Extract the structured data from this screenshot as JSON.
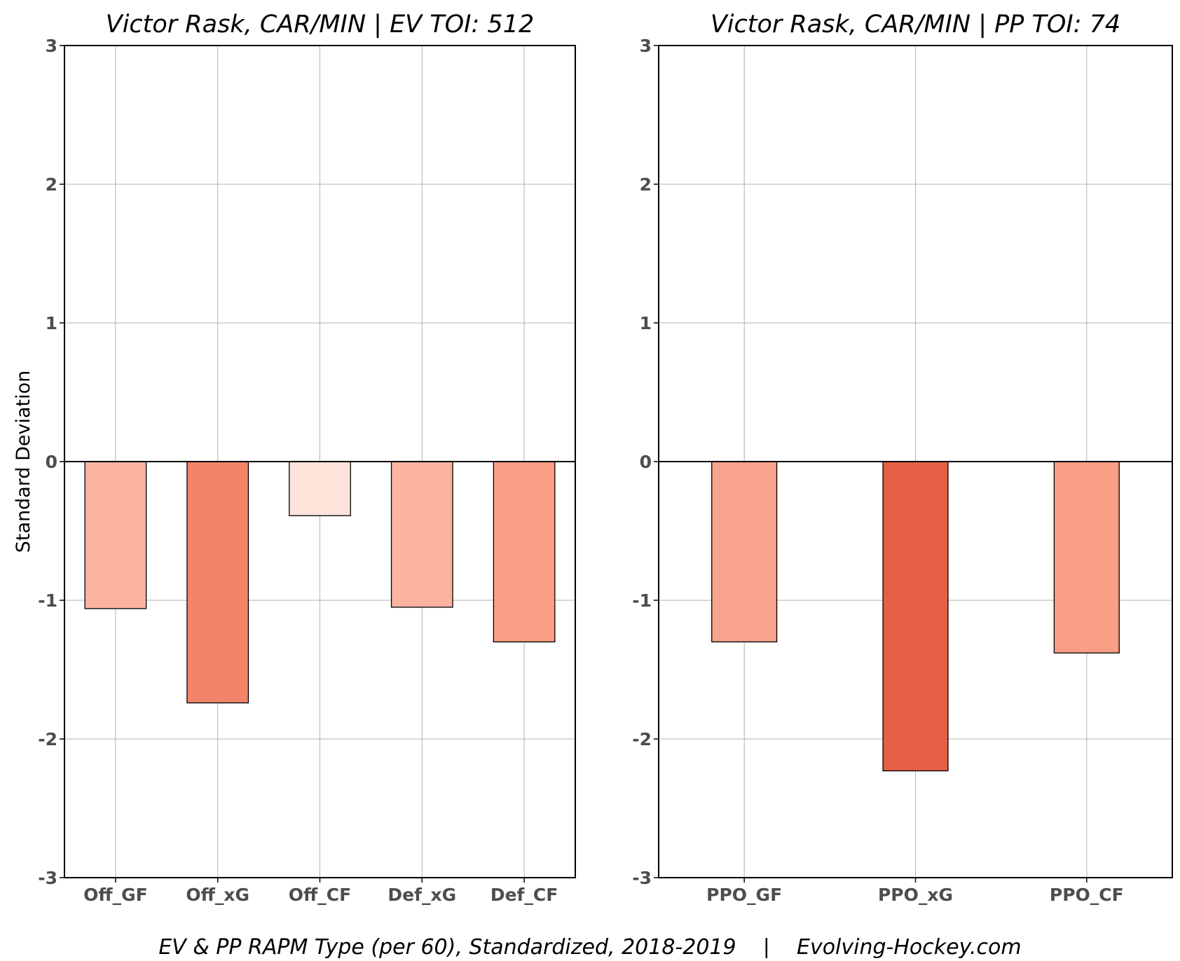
{
  "footer": "EV & PP RAPM Type (per 60), Standardized, 2018-2019    |    Evolving-Hockey.com",
  "chart_data": [
    {
      "type": "bar",
      "title": "Victor Rask, CAR/MIN  |  EV TOI: 512",
      "xlabel": "",
      "ylabel": "Standard Deviation",
      "ylim": [
        -3,
        3
      ],
      "yticks": [
        -3,
        -2,
        -1,
        0,
        1,
        2,
        3
      ],
      "ytick_labels": [
        "-3",
        "-2",
        "-1",
        "0",
        "1",
        "2",
        "3"
      ],
      "grid": true,
      "categories": [
        "Off_GF",
        "Off_xG",
        "Off_CF",
        "Def_xG",
        "Def_CF"
      ],
      "values": [
        -1.06,
        -1.74,
        -0.39,
        -1.05,
        -1.3
      ],
      "colors": [
        "#fcb4a1",
        "#f2846a",
        "#fee3da",
        "#fcb4a1",
        "#fa9e85"
      ]
    },
    {
      "type": "bar",
      "title": "Victor Rask, CAR/MIN  |  PP TOI: 74",
      "xlabel": "",
      "ylabel": "",
      "ylim": [
        -3,
        3
      ],
      "yticks": [
        -3,
        -2,
        -1,
        0,
        1,
        2,
        3
      ],
      "ytick_labels": [
        "-3",
        "-2",
        "-1",
        "0",
        "1",
        "2",
        "3"
      ],
      "grid": true,
      "categories": [
        "PPO_GF",
        "PPO_xG",
        "PPO_CF"
      ],
      "values": [
        -1.3,
        -2.23,
        -1.38
      ],
      "colors": [
        "#f9a48c",
        "#e56044",
        "#f89f85"
      ]
    }
  ]
}
